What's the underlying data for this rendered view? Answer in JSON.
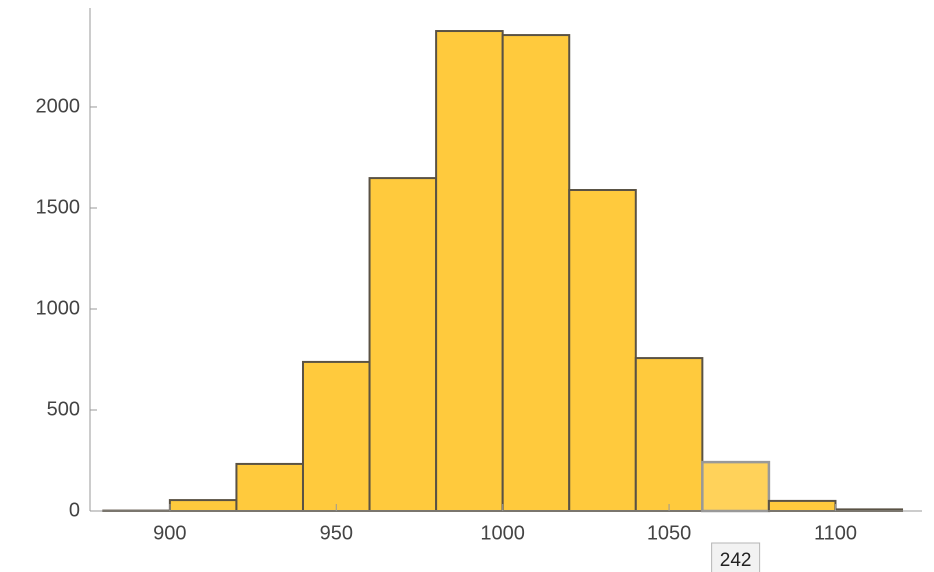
{
  "chart_data": {
    "type": "histogram",
    "bins": [
      880,
      900,
      920,
      940,
      960,
      980,
      1000,
      1020,
      1040,
      1060,
      1080,
      1100,
      1120
    ],
    "values": [
      2,
      54,
      233,
      738,
      1648,
      2376,
      2356,
      1589,
      757,
      242,
      50,
      8
    ],
    "color": "#ffca3d",
    "edge_color": "#5a5244",
    "xlim": [
      876,
      1126
    ],
    "ylim": [
      0,
      2490
    ],
    "xticks": [
      900,
      950,
      1000,
      1050,
      1100
    ],
    "yticks": [
      0,
      500,
      1000,
      1500,
      2000
    ],
    "tooltip_bin": 9
  }
}
